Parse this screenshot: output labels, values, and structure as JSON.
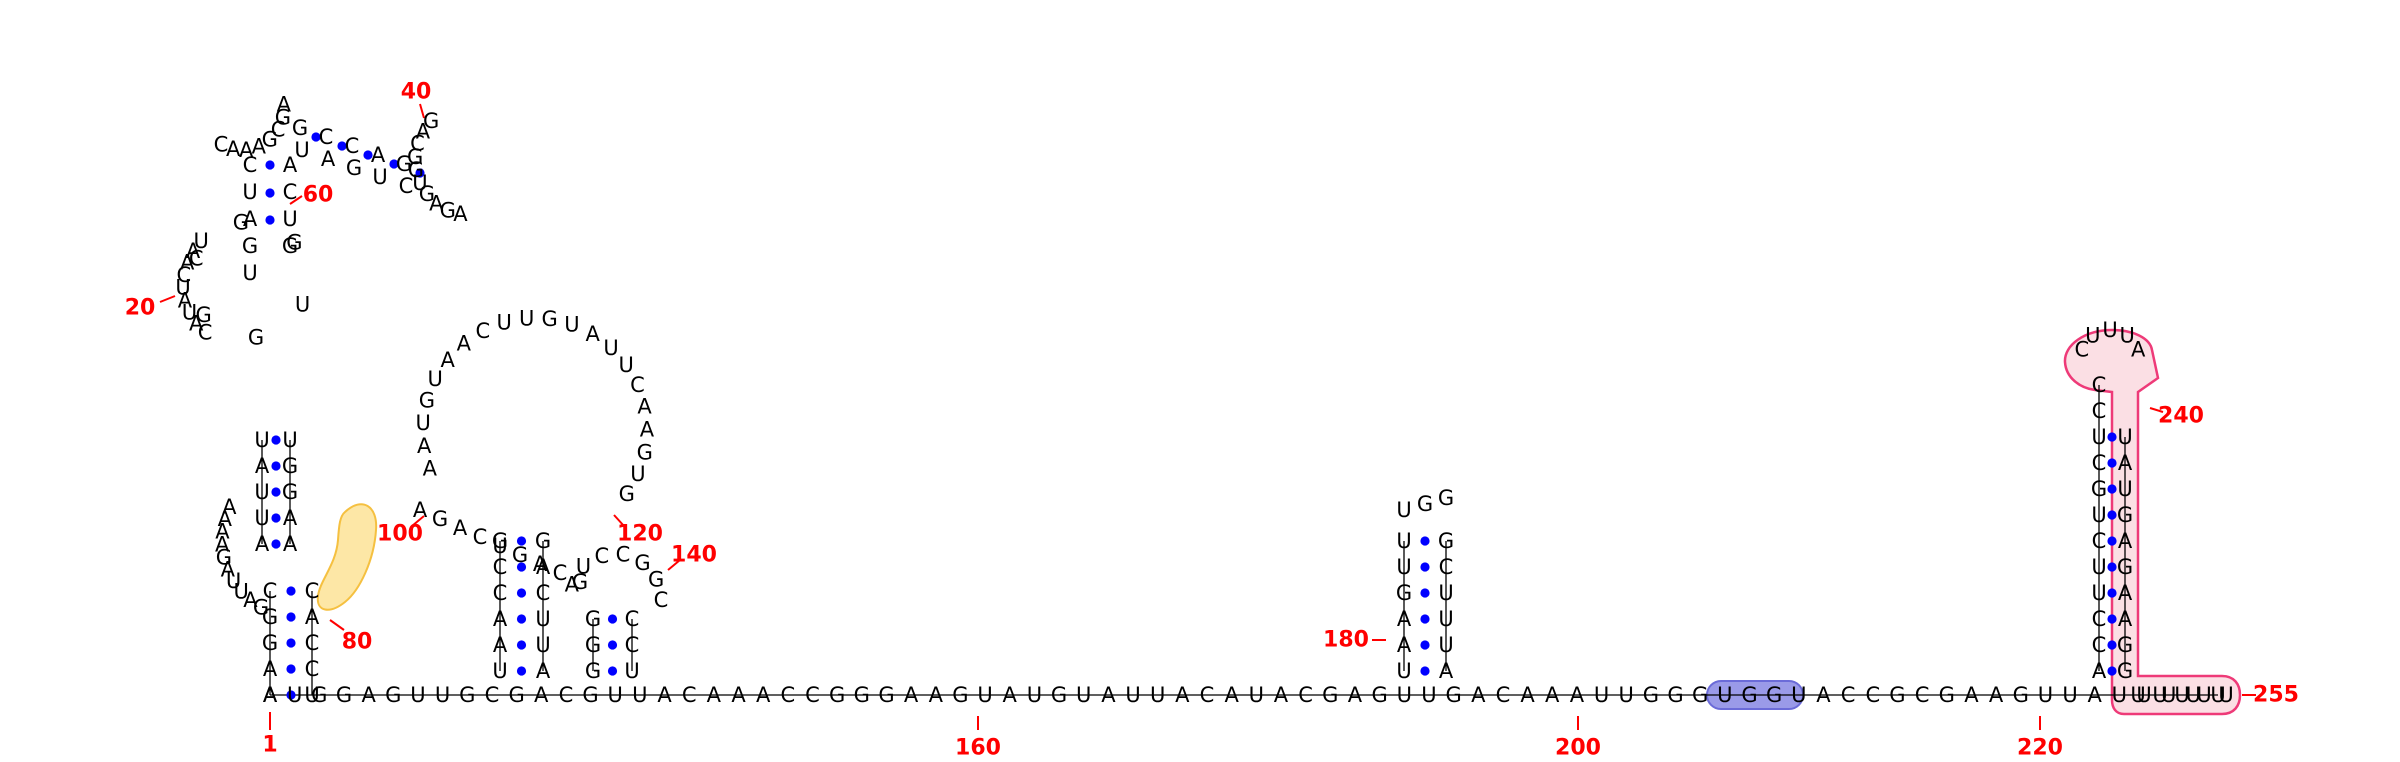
{
  "colors": {
    "base_text": "#000000",
    "pair_dot": "#0000ff",
    "backbone": "#000000",
    "position_label": "#ff0000",
    "highlight_yellow_fill": "#fde7a6",
    "highlight_yellow_stroke": "#f5c040",
    "highlight_blue_fill": "#9a9ae8",
    "highlight_blue_stroke": "#6b6bd8",
    "highlight_pink_fill": "#fbdfe4",
    "highlight_pink_stroke": "#ee3a78"
  },
  "sequence": {
    "backbone": [
      "A",
      "U",
      "G",
      "G",
      "A",
      "G",
      "U",
      "U",
      "G",
      "C",
      "G",
      "A",
      "C",
      "G",
      "U",
      "U",
      "A",
      "C",
      "A",
      "A",
      "A",
      "C",
      "C",
      "G",
      "G",
      "G",
      "A",
      "A",
      "G",
      "U",
      "A",
      "U",
      "G",
      "U",
      "A",
      "U",
      "U",
      "A",
      "C",
      "A",
      "U",
      "A",
      "C",
      "G",
      "A",
      "G",
      "U",
      "U",
      "G",
      "A",
      "C",
      "A",
      "A",
      "A",
      "U",
      "U",
      "G",
      "G",
      "G",
      "U",
      "G",
      "G",
      "U",
      "A",
      "C",
      "C",
      "G",
      "C",
      "G",
      "A",
      "A",
      "G",
      "U",
      "U",
      "A",
      "U",
      "U",
      "U",
      "U",
      "U"
    ],
    "stem_a_left": [
      "A",
      "A",
      "G",
      "G",
      "C"
    ],
    "stem_a_right": [
      "U",
      "C",
      "C",
      "A",
      "C"
    ],
    "hairpin_a_loop": [
      "A",
      "A",
      "A",
      "A",
      "G",
      "A",
      "U",
      "U",
      "A",
      "G"
    ],
    "stem_b_left": [
      "U",
      "A",
      "U",
      "U",
      "A"
    ],
    "stem_b_right": [
      "U",
      "G",
      "G",
      "A",
      "A"
    ],
    "interior_left": [
      "C",
      "A",
      "U",
      "A",
      "U",
      "C",
      "A",
      "A",
      "U"
    ],
    "interior_right": [
      "G",
      "G",
      "C",
      "G",
      "G",
      "U"
    ],
    "stem_c": [
      "C",
      "U",
      "A",
      "G",
      "U",
      "A",
      "C",
      "U",
      "G",
      "G",
      "C",
      "C",
      "A",
      "G"
    ],
    "hairpin_top_loop": [
      "C",
      "A",
      "A",
      "A",
      "G",
      "C",
      "G",
      "A"
    ],
    "loop_40_right": [
      "G",
      "A",
      "C",
      "G",
      "G",
      "U",
      "G",
      "A",
      "G",
      "A"
    ],
    "multiloop_connectors": [
      "A",
      "G",
      "A",
      "C",
      "U",
      "G",
      "A",
      "C",
      "G"
    ],
    "stem_d_left": [
      "U",
      "A",
      "A",
      "C",
      "C",
      "G"
    ],
    "stem_d_right": [
      "A",
      "U",
      "U",
      "C",
      "A",
      "G"
    ],
    "hairpin_d_loop": [
      "A",
      "A",
      "U",
      "G",
      "U",
      "A",
      "A",
      "C",
      "U",
      "U",
      "G",
      "U",
      "A",
      "U",
      "U",
      "C",
      "A",
      "A",
      "G",
      "U",
      "G"
    ],
    "stem_e_left": [
      "G",
      "G",
      "G"
    ],
    "stem_e_right": [
      "U",
      "C",
      "C"
    ],
    "hairpin_e_loop": [
      "A",
      "U",
      "C",
      "C",
      "G",
      "G",
      "C"
    ],
    "stem_f_left": [
      "U",
      "A",
      "A",
      "G",
      "U",
      "U"
    ],
    "stem_f_right": [
      "A",
      "U",
      "U",
      "U",
      "C",
      "G"
    ],
    "hairpin_f_loop": [
      "U",
      "G",
      "G"
    ],
    "stem_g_left": [
      "A",
      "C",
      "C",
      "U",
      "U",
      "C",
      "U",
      "G",
      "C",
      "U",
      "C",
      "C"
    ],
    "stem_g_right": [
      "G",
      "G",
      "A",
      "A",
      "G",
      "A",
      "G",
      "U",
      "A",
      "U"
    ],
    "hairpin_g_loop": [
      "C",
      "U",
      "U",
      "U",
      "A"
    ]
  },
  "labels": {
    "pos_1": "1",
    "pos_20": "20",
    "pos_40": "40",
    "pos_60": "60",
    "pos_80": "80",
    "pos_100": "100",
    "pos_120": "120",
    "pos_140": "140",
    "pos_160": "160",
    "pos_180": "180",
    "pos_200": "200",
    "pos_220": "220",
    "pos_240": "240",
    "pos_255": "255"
  }
}
